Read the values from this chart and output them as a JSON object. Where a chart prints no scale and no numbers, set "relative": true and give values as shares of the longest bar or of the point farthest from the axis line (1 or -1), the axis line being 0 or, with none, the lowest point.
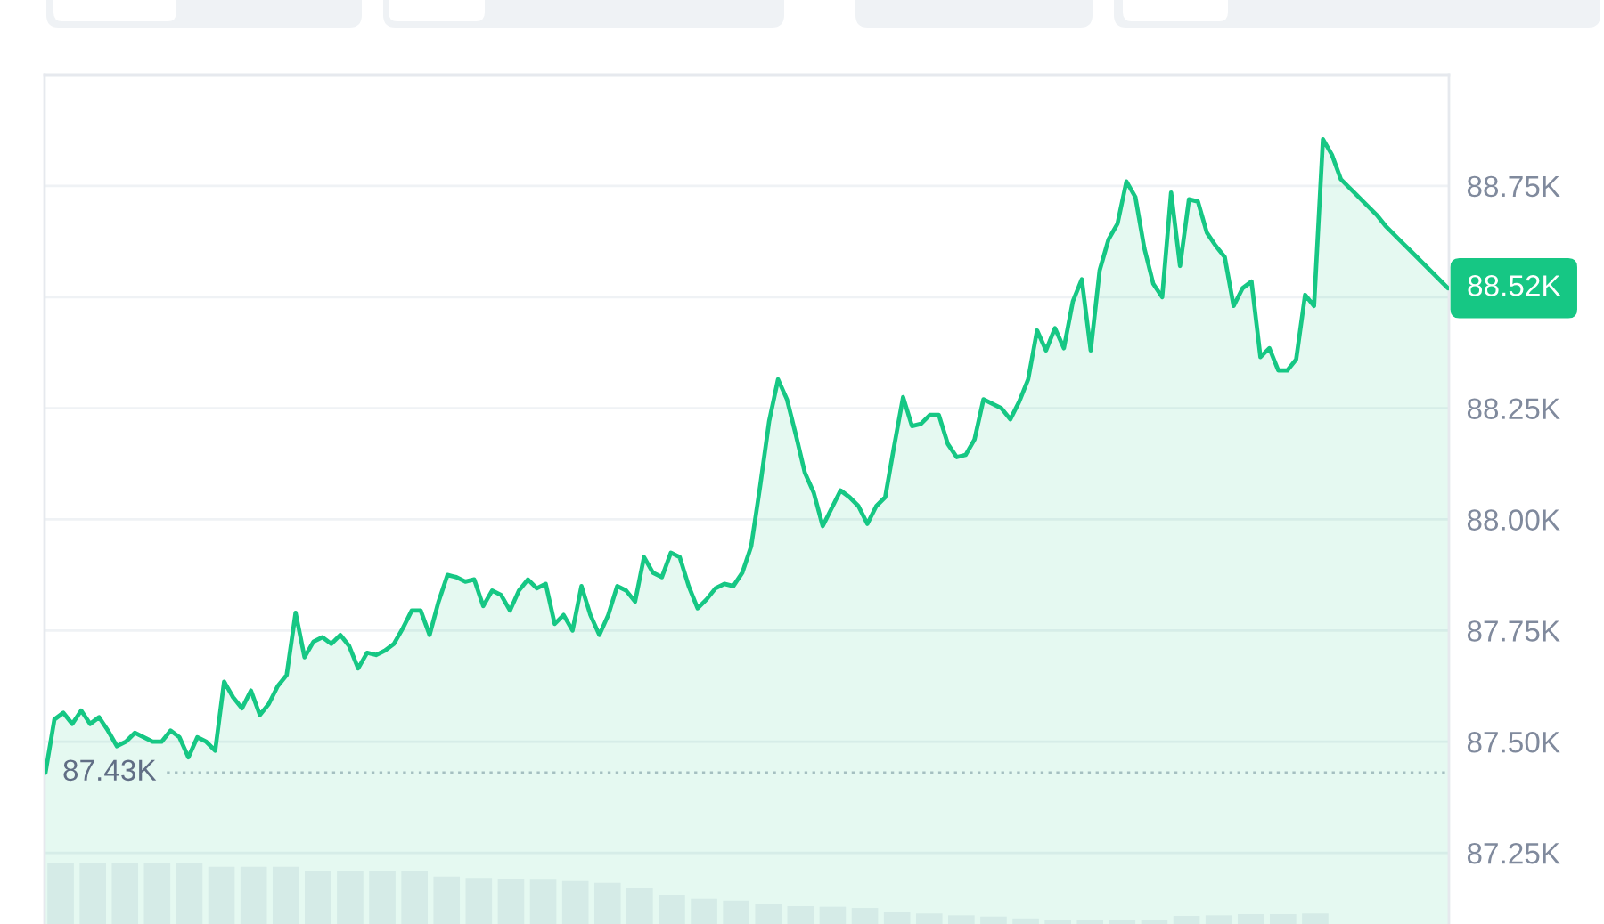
{
  "chart_data": [
    {
      "type": "area",
      "categories": [
        null,
        null,
        null,
        null,
        null,
        null,
        null,
        null,
        null,
        null,
        null,
        null,
        null,
        null,
        null,
        null,
        null,
        null,
        null,
        null,
        null,
        null,
        null,
        null,
        null,
        null,
        null,
        null,
        null,
        null,
        null,
        null,
        null,
        null,
        null,
        null,
        null,
        null,
        null,
        null,
        null,
        null,
        null,
        null,
        null,
        null,
        null,
        null,
        null,
        null,
        null,
        null,
        null,
        null,
        null,
        null,
        null,
        null,
        null,
        null,
        null,
        null,
        null,
        null,
        null,
        null,
        null,
        null,
        null,
        null,
        null,
        null,
        null,
        null,
        null,
        null,
        null,
        null,
        null,
        null,
        null,
        null,
        null,
        null,
        null,
        null,
        null,
        null,
        null,
        null,
        null,
        null,
        null,
        null,
        null,
        null,
        null,
        null,
        null,
        null,
        null,
        null,
        null,
        null,
        null,
        null,
        null,
        null,
        null,
        null,
        null,
        null,
        null,
        null,
        null,
        null,
        null,
        null,
        null,
        null,
        null,
        null,
        null,
        null,
        null,
        null,
        null,
        null,
        null,
        null,
        null,
        null,
        null,
        null,
        null,
        null,
        null,
        null,
        null,
        null,
        null,
        null,
        null,
        null,
        null,
        null,
        null,
        null,
        null,
        null,
        null,
        null,
        null,
        null,
        null,
        null,
        null,
        null
      ],
      "values": [
        87430,
        87550,
        87565,
        87540,
        87570,
        87540,
        87555,
        87525,
        87490,
        87500,
        87520,
        87510,
        87500,
        87500,
        87525,
        87510,
        87465,
        87510,
        87500,
        87480,
        87635,
        87600,
        87575,
        87615,
        87560,
        87585,
        87625,
        87650,
        87790,
        87690,
        87725,
        87735,
        87720,
        87740,
        87715,
        87665,
        87700,
        87695,
        87705,
        87720,
        87755,
        87795,
        87795,
        87740,
        87815,
        87875,
        87870,
        87860,
        87865,
        87805,
        87840,
        87830,
        87795,
        87840,
        87865,
        87845,
        87855,
        87765,
        87785,
        87750,
        87850,
        87785,
        87740,
        87785,
        87850,
        87840,
        87815,
        87915,
        87880,
        87870,
        87925,
        87915,
        87850,
        87800,
        87820,
        87845,
        87855,
        87850,
        87880,
        87940,
        88075,
        88220,
        88315,
        88270,
        88190,
        88105,
        88060,
        87985,
        88025,
        88065,
        88050,
        88030,
        87990,
        88030,
        88050,
        88165,
        88275,
        88210,
        88215,
        88235,
        88235,
        88170,
        88140,
        88145,
        88180,
        88270,
        88260,
        88250,
        88225,
        88265,
        88315,
        88425,
        88380,
        88430,
        88385,
        88490,
        88540,
        88380,
        88560,
        88630,
        88665,
        88760,
        88725,
        88610,
        88530,
        88500,
        88735,
        88570,
        88720,
        88715,
        88645,
        88615,
        88590,
        88480,
        88520,
        88535,
        88365,
        88385,
        88335,
        88335,
        88360,
        88505,
        88480,
        88855,
        88820,
        88765,
        88745,
        88725,
        88705,
        88685,
        88660,
        88640,
        88620,
        88600,
        88580,
        88560,
        88540,
        88520
      ],
      "color": "#16c784",
      "ylim": [
        87090,
        89000
      ],
      "yticks": [
        {
          "value": 87250,
          "label": "87.25K"
        },
        {
          "value": 87500,
          "label": "87.50K"
        },
        {
          "value": 87750,
          "label": "87.75K"
        },
        {
          "value": 88000,
          "label": "88.00K"
        },
        {
          "value": 88250,
          "label": "88.25K"
        },
        {
          "value": 88500,
          "label": null
        },
        {
          "value": 88750,
          "label": "88.75K"
        }
      ],
      "tick_labels": "y",
      "grid": "y",
      "ref_lines": [
        {
          "axis": "y",
          "value": 87430,
          "label": "87.43K",
          "line_style": "dotted",
          "color": "#b8bfca"
        }
      ],
      "annotations": [
        "88.52K"
      ]
    },
    {
      "type": "bar",
      "relative": true,
      "categories": [
        null,
        null,
        null,
        null,
        null,
        null,
        null,
        null,
        null,
        null,
        null,
        null,
        null,
        null,
        null,
        null,
        null,
        null,
        null,
        null,
        null,
        null,
        null,
        null,
        null,
        null,
        null,
        null,
        null,
        null,
        null,
        null,
        null,
        null,
        null,
        null,
        null,
        null,
        null,
        null
      ],
      "values": [
        1,
        1,
        1,
        0.99,
        0.99,
        0.93,
        0.93,
        0.93,
        0.86,
        0.86,
        0.86,
        0.86,
        0.77,
        0.75,
        0.74,
        0.72,
        0.7,
        0.67,
        0.58,
        0.48,
        0.41,
        0.38,
        0.33,
        0.29,
        0.28,
        0.26,
        0.2,
        0.17,
        0.14,
        0.12,
        0.09,
        0.07,
        0.07,
        0.06,
        0.06,
        0.13,
        0.14,
        0.16,
        0.16,
        0.17
      ],
      "color": "#edf0f4"
    }
  ]
}
